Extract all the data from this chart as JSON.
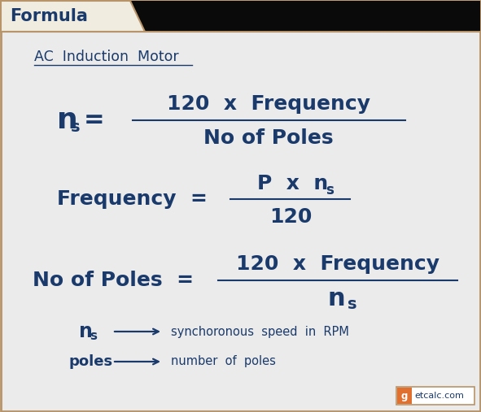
{
  "bg_color": "#ebebeb",
  "header_tab_fill": "#f0ece0",
  "border_color": "#b8946a",
  "main_text_color": "#1a3a6b",
  "subtitle_text": "AC  Induction  Motor",
  "formula1_lhs": "n",
  "formula1_lhs_sub": "s",
  "formula1_num": "120  x  Frequency",
  "formula1_den": "No of Poles",
  "formula2_lhs": "Frequency  =",
  "formula2_num": "P  x  n",
  "formula2_num_sub": "s",
  "formula2_den": "120",
  "formula3_lhs": "No of Poles  =",
  "formula3_num": "120  x  Frequency",
  "formula3_den": "n",
  "formula3_den_sub": "s",
  "legend1_sym": "n",
  "legend1_sub": "s",
  "legend1_desc": "synchoronous  speed  in  RPM",
  "legend2_sym": "poles",
  "legend2_desc": "number  of  poles",
  "arrow_color": "#1a3a6b",
  "header_text": "Formula",
  "watermark_color": "#e07030"
}
